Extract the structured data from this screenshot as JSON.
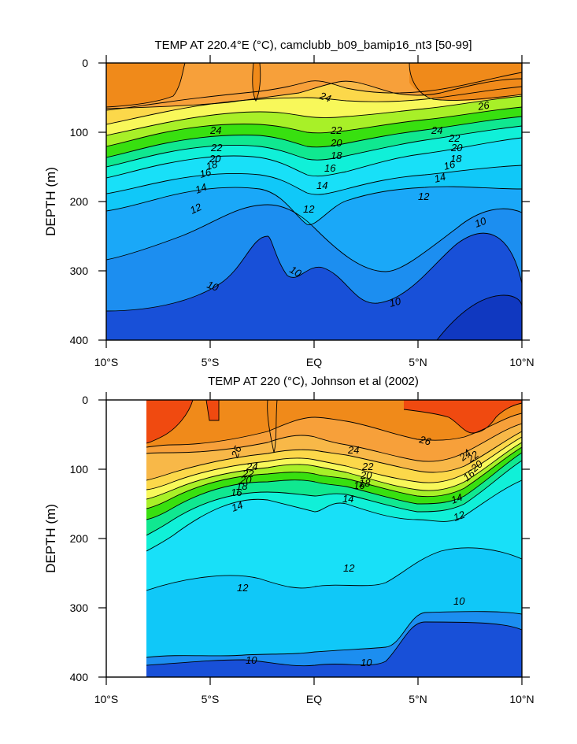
{
  "chart_data": [
    {
      "type": "contour",
      "title": "TEMP AT 220.4°E (°C), camclubb_b09_bamip16_nt3 [50-99]",
      "xlabel": "",
      "ylabel": "DEPTH (m)",
      "x_ticks": [
        "10°S",
        "5°S",
        "EQ",
        "5°N",
        "10°N"
      ],
      "y_ticks": [
        "0",
        "100",
        "200",
        "300",
        "400"
      ],
      "xlim": [
        -10,
        10
      ],
      "ylim": [
        400,
        0
      ],
      "y_inverted": true,
      "x": [
        -10,
        -8,
        -6,
        -4,
        -2,
        0,
        2,
        4,
        6,
        8,
        10
      ],
      "isotherm_depths": [
        {
          "temp": 26,
          "depth": [
            null,
            null,
            null,
            null,
            null,
            null,
            null,
            30,
            25,
            45,
            40
          ]
        },
        {
          "temp": 24,
          "depth": [
            92,
            85,
            80,
            78,
            68,
            38,
            62,
            90,
            92,
            70,
            62
          ]
        },
        {
          "temp": 22,
          "depth": [
            110,
            105,
            100,
            98,
            90,
            80,
            95,
            115,
            115,
            100,
            88
          ]
        },
        {
          "temp": 20,
          "depth": [
            125,
            120,
            118,
            115,
            108,
            100,
            112,
            130,
            130,
            112,
            102
          ]
        },
        {
          "temp": 18,
          "depth": [
            140,
            135,
            132,
            130,
            123,
            118,
            128,
            145,
            142,
            125,
            115
          ]
        },
        {
          "temp": 16,
          "depth": [
            160,
            152,
            148,
            145,
            140,
            138,
            148,
            162,
            158,
            140,
            128
          ]
        },
        {
          "temp": 14,
          "depth": [
            185,
            175,
            165,
            160,
            160,
            165,
            170,
            180,
            175,
            160,
            145
          ]
        },
        {
          "temp": 12,
          "depth": [
            225,
            205,
            185,
            180,
            195,
            235,
            208,
            205,
            200,
            185,
            170
          ]
        },
        {
          "temp": 10,
          "depth": [
            365,
            345,
            320,
            325,
            255,
            305,
            320,
            350,
            320,
            240,
            222
          ]
        }
      ],
      "contour_labels": [
        "24",
        "22",
        "20",
        "18",
        "16",
        "14",
        "12",
        "10",
        "26"
      ],
      "colorbar": false
    },
    {
      "type": "contour",
      "title": "TEMP AT 220 (°C), Johnson et al (2002)",
      "xlabel": "",
      "ylabel": "DEPTH (m)",
      "x_ticks": [
        "10°S",
        "5°S",
        "EQ",
        "5°N",
        "10°N"
      ],
      "y_ticks": [
        "0",
        "100",
        "200",
        "300",
        "400"
      ],
      "xlim": [
        -10,
        10
      ],
      "ylim": [
        400,
        0
      ],
      "y_inverted": true,
      "x": [
        -8,
        -6,
        -4,
        -2,
        0,
        2,
        4,
        6,
        8,
        10
      ],
      "isotherm_depths": [
        {
          "temp": 26,
          "depth": [
            10,
            40,
            48,
            40,
            35,
            38,
            45,
            60,
            30,
            15
          ]
        },
        {
          "temp": 24,
          "depth": [
            80,
            70,
            80,
            65,
            55,
            62,
            80,
            100,
            75,
            40
          ]
        },
        {
          "temp": 22,
          "depth": [
            100,
            100,
            100,
            90,
            85,
            90,
            105,
            130,
            95,
            52
          ]
        },
        {
          "temp": 20,
          "depth": [
            125,
            115,
            108,
            100,
            100,
            105,
            120,
            140,
            100,
            60
          ]
        },
        {
          "temp": 18,
          "depth": [
            145,
            128,
            115,
            110,
            112,
            115,
            128,
            148,
            108,
            68
          ]
        },
        {
          "temp": 16,
          "depth": [
            165,
            140,
            125,
            122,
            125,
            125,
            138,
            158,
            118,
            80
          ]
        },
        {
          "temp": 14,
          "depth": [
            185,
            160,
            142,
            140,
            145,
            145,
            150,
            168,
            135,
            100
          ]
        },
        {
          "temp": 12,
          "depth": [
            265,
            245,
            225,
            235,
            270,
            250,
            225,
            200,
            185,
            200
          ]
        },
        {
          "temp": 10,
          "depth": [
            345,
            350,
            360,
            375,
            370,
            360,
            370,
            285,
            285,
            300
          ]
        }
      ],
      "contour_labels": [
        "26",
        "24",
        "22",
        "20",
        "18",
        "16",
        "14",
        "12",
        "10"
      ],
      "colorbar": false
    }
  ],
  "colors": {
    "t28": "#f04a10",
    "t26": "#f08a1a",
    "t24": "#f7a03a",
    "t22": "#f8b848",
    "t20": "#fcd84a",
    "t19": "#f8f85a",
    "t18": "#a8f028",
    "t17": "#38e010",
    "t16": "#10e890",
    "t15": "#10f0d8",
    "t14": "#18e0f8",
    "t12": "#10c8f8",
    "t11": "#1aa8f8",
    "t10": "#1c8ef0",
    "t9": "#1a70e8",
    "t8": "#1850d8",
    "t_deep": "#1038c0"
  }
}
